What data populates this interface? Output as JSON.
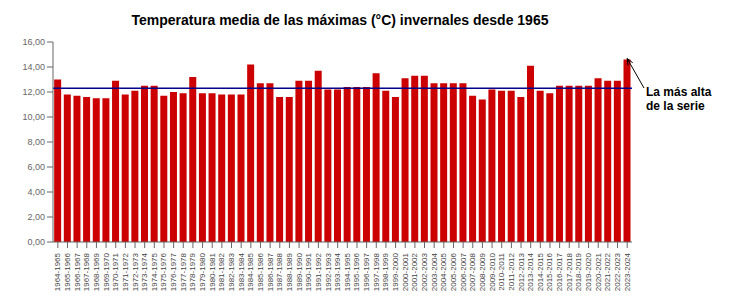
{
  "chart_data": {
    "type": "bar",
    "title": "Temperatura media de las máximas (°C) invernales desde 1965",
    "categories": [
      "1964-1965",
      "1965-1966",
      "1966-1967",
      "1967-1968",
      "1968-1969",
      "1969-1970",
      "1970-1971",
      "1971-1972",
      "1972-1973",
      "1973-1974",
      "1974-1975",
      "1975-1976",
      "1976-1977",
      "1977-1978",
      "1978-1979",
      "1979-1980",
      "1980-1981",
      "1981-1982",
      "1982-1983",
      "1983-1984",
      "1984-1985",
      "1985-1986",
      "1986-1987",
      "1987-1988",
      "1988-1989",
      "1989-1990",
      "1990-1991",
      "1991-1992",
      "1992-1993",
      "1993-1994",
      "1994-1995",
      "1995-1996",
      "1996-1997",
      "1997-1998",
      "1998-1999",
      "1999-2000",
      "2000-2001",
      "2001-2002",
      "2002-2003",
      "2003-2004",
      "2004-2005",
      "2005-2006",
      "2006-2007",
      "2007-2008",
      "2008-2009",
      "2009-2010",
      "2010-2011",
      "2011-2012",
      "2012-2013",
      "2013-2014",
      "2014-2015",
      "2015-2016",
      "2016-2017",
      "2017-2018",
      "2018-2019",
      "2019-2020",
      "2020-2021",
      "2021-2022",
      "2022-2023",
      "2023-2024"
    ],
    "values": [
      13.0,
      11.8,
      11.7,
      11.6,
      11.5,
      11.5,
      12.9,
      11.8,
      12.1,
      12.5,
      12.5,
      11.7,
      12.0,
      11.9,
      13.2,
      11.9,
      11.9,
      11.8,
      11.8,
      11.8,
      14.2,
      12.7,
      12.7,
      11.6,
      11.6,
      12.9,
      12.9,
      13.7,
      12.2,
      12.2,
      12.4,
      12.4,
      12.4,
      13.5,
      12.1,
      11.6,
      13.1,
      13.3,
      13.3,
      12.7,
      12.7,
      12.7,
      12.7,
      11.7,
      11.4,
      12.2,
      12.1,
      12.1,
      11.6,
      14.1,
      12.1,
      11.9,
      12.5,
      12.5,
      12.5,
      12.5,
      13.1,
      12.9,
      12.9,
      14.6
    ],
    "color": "#cc0000",
    "ylim": [
      0,
      16
    ],
    "yticks": [
      {
        "value": 0,
        "label": "0,00"
      },
      {
        "value": 2,
        "label": "2,00"
      },
      {
        "value": 4,
        "label": "4,00"
      },
      {
        "value": 6,
        "label": "6,00"
      },
      {
        "value": 8,
        "label": "8,00"
      },
      {
        "value": 10,
        "label": "10,00"
      },
      {
        "value": 12,
        "label": "12,00"
      },
      {
        "value": 14,
        "label": "14,00"
      },
      {
        "value": 16,
        "label": "16,00"
      }
    ],
    "grid": false,
    "reference_line": {
      "value": 12.3,
      "color": "#00008B"
    },
    "annotations": [
      {
        "text": "La más alta\nde la serie",
        "x": "2023-2024",
        "y": 14.6
      }
    ]
  }
}
